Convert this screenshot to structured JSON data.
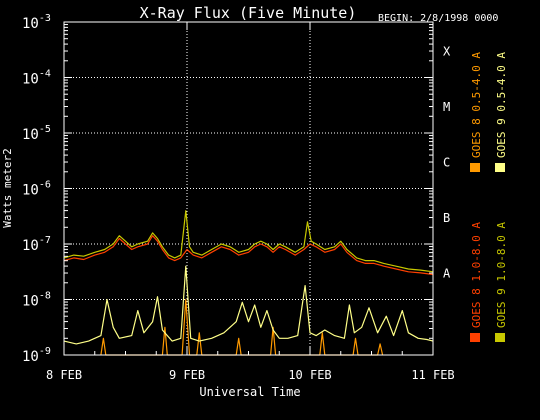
{
  "chart_data": {
    "type": "line",
    "title": "X-Ray Flux (Five Minute)",
    "begin_label": "BEGIN: 2/8/1998 0000",
    "xlabel": "Universal Time",
    "ylabel": "Watts meter2",
    "x_unit": "days since 8 FEB 1998 00:00 UT",
    "xlim": [
      0,
      3
    ],
    "ylim_log10": [
      -9,
      -3
    ],
    "y_scale": "log",
    "x_ticks": [
      {
        "x": 0,
        "label": "8 FEB"
      },
      {
        "x": 1,
        "label": "9 FEB"
      },
      {
        "x": 2,
        "label": "10 FEB"
      },
      {
        "x": 3,
        "label": "11 FEB"
      }
    ],
    "y_ticks": [
      {
        "exp": -9,
        "label": "10",
        "sup": "-9"
      },
      {
        "exp": -8,
        "label": "10",
        "sup": "-8"
      },
      {
        "exp": -7,
        "label": "10",
        "sup": "-7"
      },
      {
        "exp": -6,
        "label": "10",
        "sup": "-6"
      },
      {
        "exp": -5,
        "label": "10",
        "sup": "-5"
      },
      {
        "exp": -4,
        "label": "10",
        "sup": "-4"
      },
      {
        "exp": -3,
        "label": "10",
        "sup": "-3"
      }
    ],
    "flare_classes": [
      {
        "exp": -8,
        "label": "A"
      },
      {
        "exp": -7,
        "label": "B"
      },
      {
        "exp": -6,
        "label": "C"
      },
      {
        "exp": -5,
        "label": "M"
      },
      {
        "exp": -4,
        "label": "X"
      }
    ],
    "grid": "dotted horizontal at 1e-8..1e-4, dotted vertical at day boundaries",
    "legend_placement": "right, vertical",
    "series": [
      {
        "name": "GOES 8 1.0-8.0 A",
        "color": "#ff4000",
        "points": [
          [
            0.0,
            -7.3
          ],
          [
            0.08,
            -7.25
          ],
          [
            0.16,
            -7.28
          ],
          [
            0.25,
            -7.2
          ],
          [
            0.33,
            -7.15
          ],
          [
            0.4,
            -7.05
          ],
          [
            0.45,
            -6.9
          ],
          [
            0.5,
            -7.0
          ],
          [
            0.55,
            -7.1
          ],
          [
            0.6,
            -7.05
          ],
          [
            0.68,
            -7.0
          ],
          [
            0.72,
            -6.85
          ],
          [
            0.76,
            -6.95
          ],
          [
            0.8,
            -7.1
          ],
          [
            0.85,
            -7.25
          ],
          [
            0.9,
            -7.3
          ],
          [
            0.95,
            -7.25
          ],
          [
            1.0,
            -7.1
          ],
          [
            1.05,
            -7.2
          ],
          [
            1.12,
            -7.25
          ],
          [
            1.2,
            -7.15
          ],
          [
            1.28,
            -7.05
          ],
          [
            1.35,
            -7.1
          ],
          [
            1.42,
            -7.2
          ],
          [
            1.5,
            -7.15
          ],
          [
            1.55,
            -7.05
          ],
          [
            1.6,
            -7.0
          ],
          [
            1.65,
            -7.05
          ],
          [
            1.7,
            -7.15
          ],
          [
            1.75,
            -7.05
          ],
          [
            1.8,
            -7.1
          ],
          [
            1.88,
            -7.2
          ],
          [
            1.95,
            -7.1
          ],
          [
            2.0,
            -7.0
          ],
          [
            2.05,
            -7.05
          ],
          [
            2.12,
            -7.15
          ],
          [
            2.2,
            -7.1
          ],
          [
            2.25,
            -7.0
          ],
          [
            2.3,
            -7.15
          ],
          [
            2.38,
            -7.3
          ],
          [
            2.45,
            -7.35
          ],
          [
            2.52,
            -7.35
          ],
          [
            2.6,
            -7.4
          ],
          [
            2.7,
            -7.45
          ],
          [
            2.8,
            -7.5
          ],
          [
            2.9,
            -7.52
          ],
          [
            3.0,
            -7.55
          ]
        ]
      },
      {
        "name": "GOES 8 0.5-4.0 A",
        "color": "#ff9a00",
        "points": [
          [
            0.3,
            -9.0
          ],
          [
            0.32,
            -8.7
          ],
          [
            0.34,
            -9.0
          ],
          [
            0.8,
            -9.0
          ],
          [
            0.82,
            -8.5
          ],
          [
            0.84,
            -9.0
          ],
          [
            0.96,
            -9.0
          ],
          [
            0.99,
            -8.0
          ],
          [
            1.02,
            -9.0
          ],
          [
            1.08,
            -9.0
          ],
          [
            1.1,
            -8.6
          ],
          [
            1.12,
            -9.0
          ],
          [
            1.4,
            -9.0
          ],
          [
            1.42,
            -8.7
          ],
          [
            1.44,
            -9.0
          ],
          [
            1.68,
            -9.0
          ],
          [
            1.7,
            -8.5
          ],
          [
            1.72,
            -9.0
          ],
          [
            2.08,
            -9.0
          ],
          [
            2.1,
            -8.6
          ],
          [
            2.12,
            -9.0
          ],
          [
            2.35,
            -9.0
          ],
          [
            2.37,
            -8.7
          ],
          [
            2.39,
            -9.0
          ],
          [
            2.55,
            -9.0
          ],
          [
            2.57,
            -8.8
          ],
          [
            2.59,
            -9.0
          ]
        ]
      },
      {
        "name": "GOES 9 1.0-8.0 A",
        "color": "#c8c800",
        "points": [
          [
            0.0,
            -7.25
          ],
          [
            0.08,
            -7.2
          ],
          [
            0.16,
            -7.22
          ],
          [
            0.25,
            -7.15
          ],
          [
            0.33,
            -7.1
          ],
          [
            0.4,
            -7.0
          ],
          [
            0.45,
            -6.85
          ],
          [
            0.5,
            -6.95
          ],
          [
            0.55,
            -7.05
          ],
          [
            0.6,
            -7.0
          ],
          [
            0.68,
            -6.95
          ],
          [
            0.72,
            -6.8
          ],
          [
            0.76,
            -6.9
          ],
          [
            0.8,
            -7.05
          ],
          [
            0.85,
            -7.2
          ],
          [
            0.9,
            -7.25
          ],
          [
            0.95,
            -7.2
          ],
          [
            0.99,
            -6.4
          ],
          [
            1.02,
            -7.05
          ],
          [
            1.05,
            -7.15
          ],
          [
            1.12,
            -7.2
          ],
          [
            1.2,
            -7.1
          ],
          [
            1.28,
            -7.0
          ],
          [
            1.35,
            -7.05
          ],
          [
            1.42,
            -7.15
          ],
          [
            1.5,
            -7.1
          ],
          [
            1.55,
            -7.0
          ],
          [
            1.6,
            -6.95
          ],
          [
            1.65,
            -7.0
          ],
          [
            1.7,
            -7.1
          ],
          [
            1.75,
            -7.0
          ],
          [
            1.8,
            -7.05
          ],
          [
            1.88,
            -7.15
          ],
          [
            1.95,
            -7.05
          ],
          [
            1.98,
            -6.6
          ],
          [
            2.01,
            -6.95
          ],
          [
            2.05,
            -7.0
          ],
          [
            2.12,
            -7.1
          ],
          [
            2.2,
            -7.05
          ],
          [
            2.25,
            -6.95
          ],
          [
            2.3,
            -7.1
          ],
          [
            2.38,
            -7.25
          ],
          [
            2.45,
            -7.3
          ],
          [
            2.52,
            -7.3
          ],
          [
            2.6,
            -7.35
          ],
          [
            2.7,
            -7.4
          ],
          [
            2.8,
            -7.45
          ],
          [
            2.9,
            -7.47
          ],
          [
            3.0,
            -7.5
          ]
        ]
      },
      {
        "name": "GOES 9 0.5-4.0 A",
        "color": "#ffff88",
        "points": [
          [
            0.0,
            -8.75
          ],
          [
            0.1,
            -8.8
          ],
          [
            0.2,
            -8.75
          ],
          [
            0.3,
            -8.65
          ],
          [
            0.35,
            -8.0
          ],
          [
            0.4,
            -8.5
          ],
          [
            0.45,
            -8.7
          ],
          [
            0.55,
            -8.65
          ],
          [
            0.6,
            -8.2
          ],
          [
            0.65,
            -8.6
          ],
          [
            0.72,
            -8.4
          ],
          [
            0.76,
            -7.95
          ],
          [
            0.8,
            -8.55
          ],
          [
            0.88,
            -8.75
          ],
          [
            0.95,
            -8.7
          ],
          [
            0.99,
            -7.4
          ],
          [
            1.03,
            -8.7
          ],
          [
            1.1,
            -8.75
          ],
          [
            1.2,
            -8.7
          ],
          [
            1.3,
            -8.6
          ],
          [
            1.4,
            -8.4
          ],
          [
            1.45,
            -8.05
          ],
          [
            1.5,
            -8.4
          ],
          [
            1.55,
            -8.1
          ],
          [
            1.6,
            -8.5
          ],
          [
            1.65,
            -8.2
          ],
          [
            1.7,
            -8.55
          ],
          [
            1.75,
            -8.7
          ],
          [
            1.82,
            -8.7
          ],
          [
            1.9,
            -8.65
          ],
          [
            1.96,
            -7.75
          ],
          [
            2.0,
            -8.6
          ],
          [
            2.05,
            -8.65
          ],
          [
            2.12,
            -8.55
          ],
          [
            2.2,
            -8.65
          ],
          [
            2.28,
            -8.7
          ],
          [
            2.32,
            -8.1
          ],
          [
            2.36,
            -8.6
          ],
          [
            2.42,
            -8.5
          ],
          [
            2.48,
            -8.15
          ],
          [
            2.55,
            -8.6
          ],
          [
            2.62,
            -8.3
          ],
          [
            2.68,
            -8.65
          ],
          [
            2.75,
            -8.2
          ],
          [
            2.8,
            -8.6
          ],
          [
            2.88,
            -8.7
          ],
          [
            2.95,
            -8.72
          ],
          [
            3.0,
            -8.75
          ]
        ]
      }
    ]
  }
}
